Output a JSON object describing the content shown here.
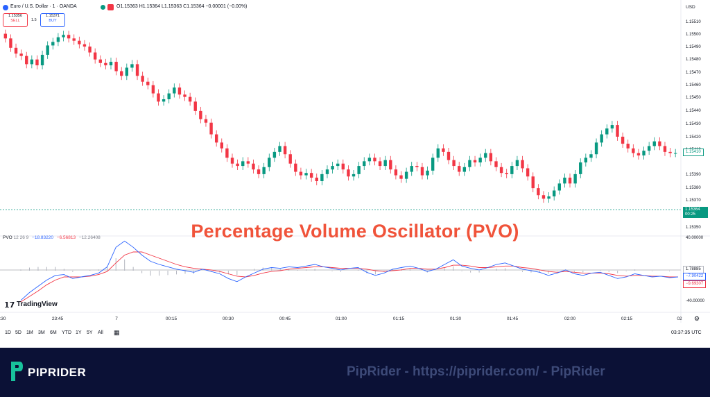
{
  "header": {
    "symbol": "Euro / U.S. Dollar · 1 · OANDA",
    "ohlc": "O1.15363 H1.15364 L1.15363 C1.15364 −0.00001 (−0.00%)",
    "currency": "USD"
  },
  "trade": {
    "sell_price": "1.15356",
    "sell_label": "SELL",
    "spread": "1.5",
    "buy_price": "1.15371",
    "buy_label": "BUY"
  },
  "price_axis": [
    "1.15510",
    "1.15500",
    "1.15490",
    "1.15480",
    "1.15470",
    "1.15460",
    "1.15450",
    "1.15440",
    "1.15430",
    "1.15420",
    "1.15410",
    "1.15390",
    "1.15380",
    "1.15370",
    "1.15350"
  ],
  "current_price": {
    "value": "1.15364",
    "countdown": "00:25"
  },
  "last_tag": "1.15410",
  "indicator": {
    "title": "PVO",
    "params": "12 26 9",
    "v1": "−18.83220",
    "v2": "−6.56813",
    "v3": "−12.26408"
  },
  "osc_axis": {
    "top": "40.00000",
    "bottom": "-40.00000"
  },
  "osc_tags": {
    "hist": "1.78885",
    "pvo": "−7.90422",
    "signal": "−9.69307"
  },
  "overlay_title": "Percentage Volume Oscillator (PVO)",
  "watermark": "TradingView",
  "time_axis": [
    ":30",
    "23:45",
    "7",
    "00:15",
    "00:30",
    "00:45",
    "01:00",
    "01:15",
    "01:30",
    "01:45",
    "02:00",
    "02:15",
    "02"
  ],
  "timeframes": [
    "1D",
    "5D",
    "1M",
    "3M",
    "6M",
    "YTD",
    "1Y",
    "5Y",
    "All"
  ],
  "clock": "03:37:35 UTC",
  "brand": "PIPRIDER",
  "footer_text": "PipRider - https://piprider.com/ - PipRider",
  "colors": {
    "up": "#089981",
    "down": "#f23645",
    "pvo": "#2962ff",
    "signal": "#f23645",
    "title": "#f0533a",
    "footer_bg": "#0b1136"
  },
  "chart_data": {
    "type": "candlestick",
    "closes": [
      1.15502,
      1.15494,
      1.15489,
      1.15487,
      1.1548,
      1.15484,
      1.15479,
      1.15488,
      1.15496,
      1.15499,
      1.15503,
      1.15505,
      1.15502,
      1.155,
      1.15497,
      1.15495,
      1.1549,
      1.15484,
      1.15481,
      1.15479,
      1.15482,
      1.15474,
      1.1547,
      1.15477,
      1.1548,
      1.1547,
      1.15465,
      1.15462,
      1.15455,
      1.15448,
      1.1545,
      1.15455,
      1.1546,
      1.15454,
      1.15452,
      1.15448,
      1.1544,
      1.15433,
      1.1543,
      1.1542,
      1.15413,
      1.15408,
      1.154,
      1.15395,
      1.15393,
      1.15397,
      1.15395,
      1.1539,
      1.15386,
      1.15392,
      1.154,
      1.15405,
      1.1541,
      1.15403,
      1.15395,
      1.15388,
      1.15385,
      1.15387,
      1.15383,
      1.1538,
      1.15386,
      1.1539,
      1.15393,
      1.15395,
      1.1539,
      1.15384,
      1.15386,
      1.15393,
      1.15397,
      1.154,
      1.15397,
      1.15393,
      1.15398,
      1.1539,
      1.15385,
      1.15382,
      1.15388,
      1.15393,
      1.15392,
      1.15385,
      1.15389,
      1.154,
      1.15408,
      1.15405,
      1.15398,
      1.15393,
      1.15388,
      1.15392,
      1.15398,
      1.15396,
      1.154,
      1.15404,
      1.15397,
      1.15392,
      1.15387,
      1.15386,
      1.15393,
      1.15398,
      1.15391,
      1.15384,
      1.15374,
      1.15368,
      1.15365,
      1.15367,
      1.15372,
      1.15378,
      1.15383,
      1.15378,
      1.15386,
      1.15396,
      1.154,
      1.15403,
      1.15413,
      1.1542,
      1.15425,
      1.15428,
      1.15418,
      1.15412,
      1.15408,
      1.15404,
      1.15402,
      1.15406,
      1.1541,
      1.15414,
      1.1541,
      1.15405,
      1.15404,
      1.15404
    ],
    "price_range": [
      1.15345,
      1.1552
    ],
    "pvo": [
      -38,
      -28,
      -20,
      -12,
      -6,
      -5,
      -10,
      -8,
      -6,
      -3,
      5,
      30,
      38,
      30,
      20,
      12,
      8,
      5,
      2,
      0,
      -2,
      2,
      -1,
      -4,
      -10,
      -14,
      -8,
      -3,
      2,
      4,
      3,
      5,
      4,
      6,
      8,
      5,
      3,
      1,
      3,
      4,
      -2,
      -6,
      -3,
      2,
      4,
      6,
      3,
      -1,
      2,
      8,
      14,
      6,
      3,
      1,
      4,
      8,
      10,
      6,
      2,
      0,
      -2,
      -6,
      -3,
      1,
      -4,
      -6,
      -3,
      -2,
      -6,
      -10,
      -8,
      -4,
      -6,
      -8,
      -7,
      -9,
      -8
    ],
    "signal": [
      -40,
      -33,
      -26,
      -18,
      -12,
      -8,
      -8,
      -8,
      -7,
      -5,
      -1,
      10,
      20,
      24,
      24,
      20,
      16,
      12,
      8,
      5,
      3,
      2,
      1,
      -1,
      -4,
      -7,
      -8,
      -6,
      -3,
      -1,
      0,
      2,
      3,
      4,
      5,
      5,
      4,
      3,
      3,
      3,
      2,
      0,
      -1,
      0,
      1,
      3,
      3,
      2,
      2,
      4,
      7,
      7,
      6,
      4,
      4,
      5,
      6,
      6,
      4,
      3,
      1,
      -1,
      -2,
      -1,
      -2,
      -3,
      -3,
      -3,
      -4,
      -6,
      -7,
      -6,
      -6,
      -7,
      -7,
      -8,
      -8
    ],
    "osc_range": [
      -40,
      40
    ]
  }
}
